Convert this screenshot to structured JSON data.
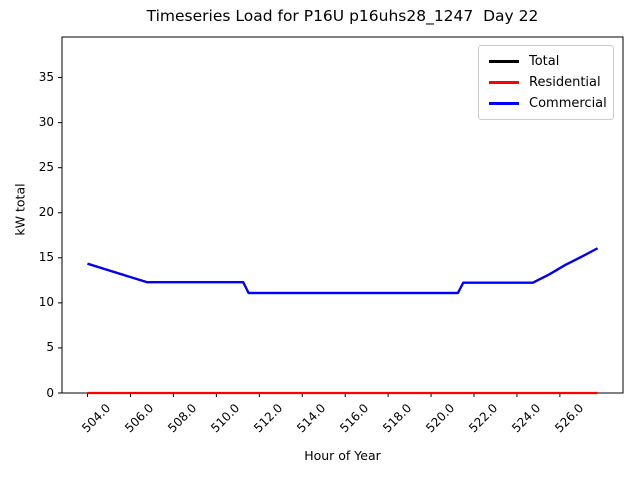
{
  "chart_data": {
    "type": "line",
    "title": "Timeseries Load for P16U p16uhs28_1247  Day 22",
    "xlabel": "Hour of Year",
    "ylabel": "kW total",
    "xlim": [
      502.81,
      528.94
    ],
    "ylim": [
      0,
      39.5
    ],
    "grid": false,
    "xticks": {
      "values": [
        504,
        506,
        508,
        510,
        512,
        514,
        516,
        518,
        520,
        522,
        524,
        526
      ],
      "labels": [
        "504.0",
        "506.0",
        "508.0",
        "510.0",
        "512.0",
        "514.0",
        "516.0",
        "518.0",
        "520.0",
        "522.0",
        "524.0",
        "526.0"
      ],
      "rotation_deg": 45
    },
    "yticks": {
      "values": [
        0,
        5,
        10,
        15,
        20,
        25,
        30,
        35
      ],
      "labels": [
        "0",
        "5",
        "10",
        "15",
        "20",
        "25",
        "30",
        "35"
      ]
    },
    "legend": {
      "position": "upper right",
      "entries": [
        "Total",
        "Residential",
        "Commercial"
      ]
    },
    "series": [
      {
        "name": "Total",
        "color": "#000000",
        "note": "identical to Commercial (Residential is 0), hidden beneath blue line",
        "points": [
          [
            504.0,
            14.35
          ],
          [
            506.75,
            12.3
          ],
          [
            511.25,
            12.3
          ],
          [
            511.5,
            11.1
          ],
          [
            521.25,
            11.1
          ],
          [
            521.5,
            12.25
          ],
          [
            524.75,
            12.25
          ],
          [
            525.5,
            13.15
          ],
          [
            526.25,
            14.2
          ],
          [
            527.0,
            15.1
          ],
          [
            527.75,
            16.05
          ]
        ]
      },
      {
        "name": "Residential",
        "color": "#ff0000",
        "points": [
          [
            504.0,
            0.0
          ],
          [
            527.75,
            0.0
          ]
        ]
      },
      {
        "name": "Commercial",
        "color": "#0000ff",
        "points": [
          [
            504.0,
            14.35
          ],
          [
            506.75,
            12.3
          ],
          [
            511.25,
            12.3
          ],
          [
            511.5,
            11.1
          ],
          [
            521.25,
            11.1
          ],
          [
            521.5,
            12.25
          ],
          [
            524.75,
            12.25
          ],
          [
            525.5,
            13.15
          ],
          [
            526.25,
            14.2
          ],
          [
            527.0,
            15.1
          ],
          [
            527.75,
            16.05
          ]
        ]
      }
    ]
  }
}
